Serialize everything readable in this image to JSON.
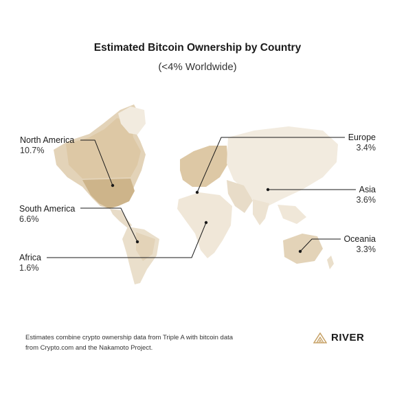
{
  "title": "Estimated Bitcoin Ownership by Country",
  "subtitle": "(<4% Worldwide)",
  "regions": {
    "north_america": {
      "name": "North America",
      "pct": "10.7%"
    },
    "south_america": {
      "name": "South America",
      "pct": "6.6%"
    },
    "africa": {
      "name": "Africa",
      "pct": "1.6%"
    },
    "europe": {
      "name": "Europe",
      "pct": "3.4%"
    },
    "asia": {
      "name": "Asia",
      "pct": "3.6%"
    },
    "oceania": {
      "name": "Oceania",
      "pct": "3.3%"
    }
  },
  "footnote": "Estimates combine crypto ownership data from Triple A with bitcoin data from Crypto.com and the Nakamoto Project.",
  "logo": {
    "text": "RIVER",
    "icon": "river-mountain-icon"
  },
  "colors": {
    "land_light": "#f2ebdf",
    "land_mid": "#e3d3b8",
    "land_dark": "#cdb48a",
    "accent_gold": "#c8a46a",
    "leader": "#1a1a1a"
  }
}
